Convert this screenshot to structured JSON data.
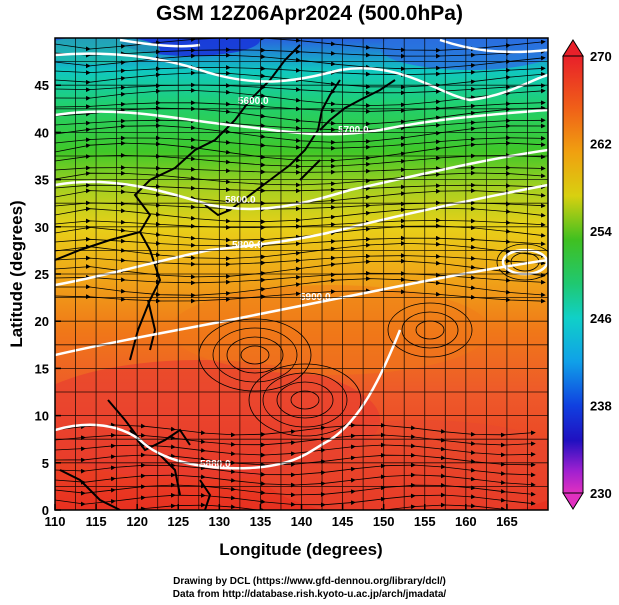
{
  "title": "GSM 12Z06Apr2024 (500.0hPa)",
  "axes": {
    "xlabel": "Longitude (degrees)",
    "ylabel": "Latitude  (degrees)",
    "x_ticks": [
      "110",
      "115",
      "120",
      "125",
      "130",
      "135",
      "140",
      "145",
      "150",
      "155",
      "160",
      "165"
    ],
    "y_ticks": [
      "0",
      "5",
      "10",
      "15",
      "20",
      "25",
      "30",
      "35",
      "40",
      "45"
    ]
  },
  "colorbar": {
    "labels": [
      "270",
      "262",
      "254",
      "246",
      "238",
      "230"
    ],
    "colors": {
      "top": "#e8202a",
      "orange": "#f08a10",
      "yellow": "#e8d010",
      "green": "#30c020",
      "cyan": "#10d0c8",
      "blue": "#1040e0",
      "purple": "#b020d0",
      "bottom": "#e030c0"
    }
  },
  "contour_labels": [
    "5600.0",
    "5700.0",
    "5800.0",
    "5800.0",
    "5900.0",
    "5880.0"
  ],
  "credit": {
    "line1": "Drawing by DCL (https://www.gfd-dennou.org/library/dcl/)",
    "line2": "Data from http://database.rish.kyoto-u.ac.jp/arch/jmadata/"
  }
}
